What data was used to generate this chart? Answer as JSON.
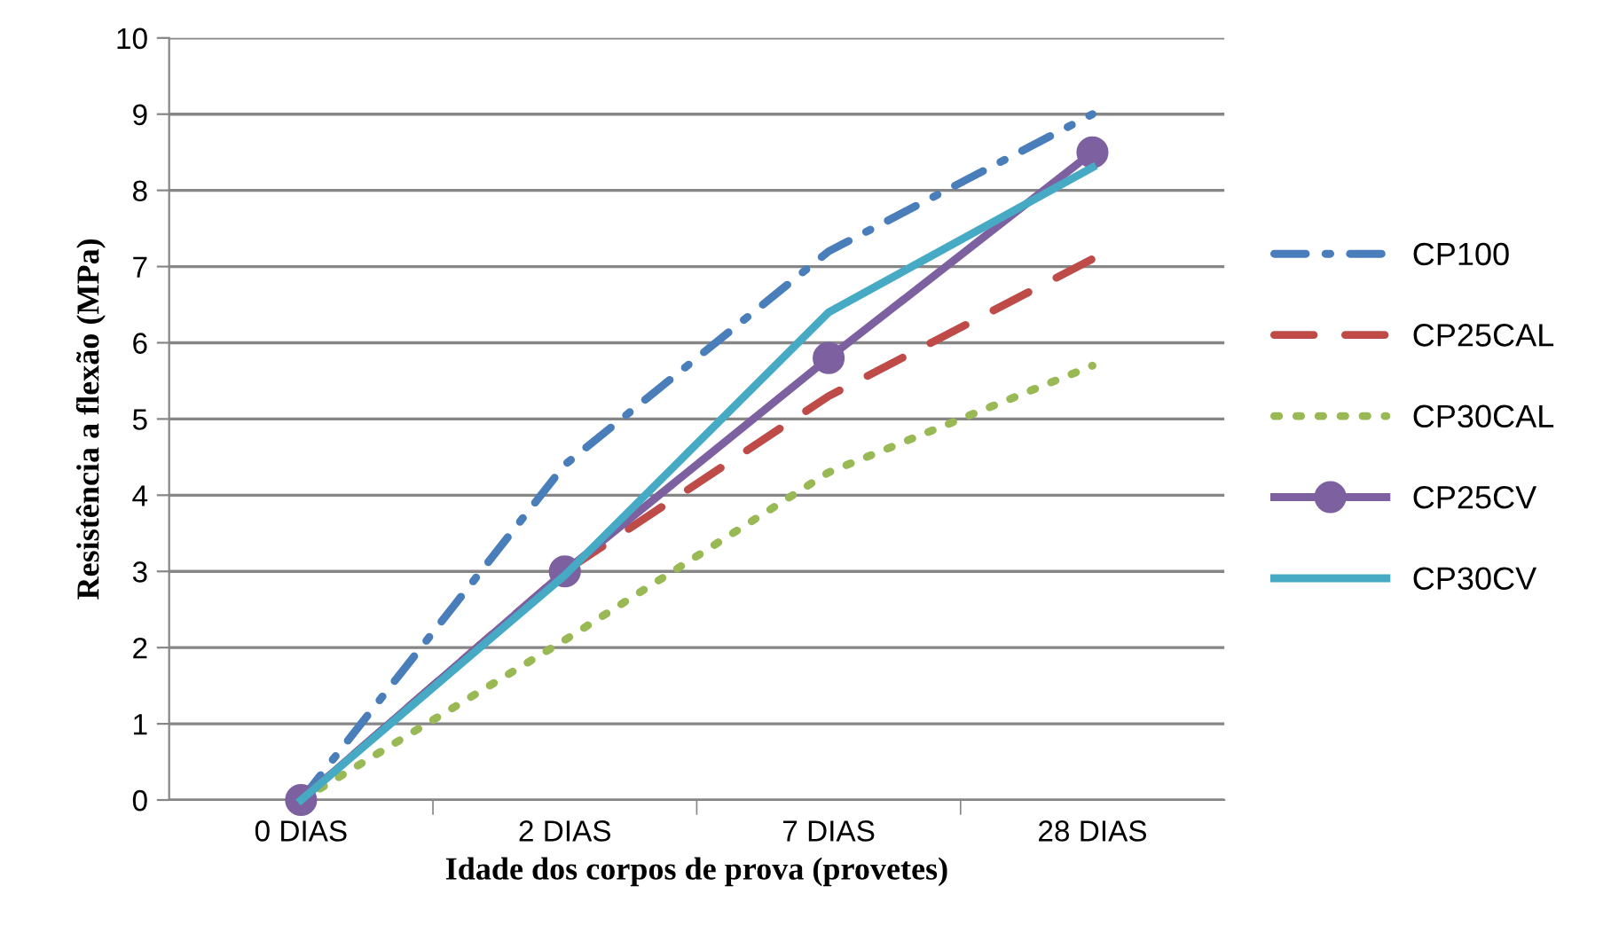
{
  "chart_data": {
    "type": "line",
    "xlabel": "Idade dos corpos de prova (provetes)",
    "ylabel": "Resistência a flexão (MPa)",
    "categories": [
      "0 DIAS",
      "2 DIAS",
      "7 DIAS",
      "28 DIAS"
    ],
    "series": [
      {
        "name": "CP100",
        "color": "#4a7ebb",
        "line_style": "dashdot",
        "marker": "none",
        "values": [
          0,
          4.4,
          7.2,
          9.0
        ]
      },
      {
        "name": "CP25CAL",
        "color": "#be4b48",
        "line_style": "dashed",
        "marker": "none",
        "values": [
          0,
          3.0,
          5.3,
          7.1
        ]
      },
      {
        "name": "CP30CAL",
        "color": "#98b954",
        "line_style": "dotted",
        "marker": "none",
        "values": [
          0,
          2.1,
          4.3,
          5.7
        ]
      },
      {
        "name": "CP25CV",
        "color": "#7d60a0",
        "line_style": "solid",
        "marker": "circle",
        "values": [
          0,
          3.0,
          5.8,
          8.5
        ]
      },
      {
        "name": "CP30CV",
        "color": "#46aac5",
        "line_style": "solid",
        "marker": "none",
        "values": [
          0,
          2.95,
          6.4,
          8.3
        ]
      }
    ],
    "ylim": [
      0,
      10
    ],
    "yticks": [
      0,
      1,
      2,
      3,
      4,
      5,
      6,
      7,
      8,
      9,
      10
    ],
    "grid": "y",
    "legend": "right"
  }
}
